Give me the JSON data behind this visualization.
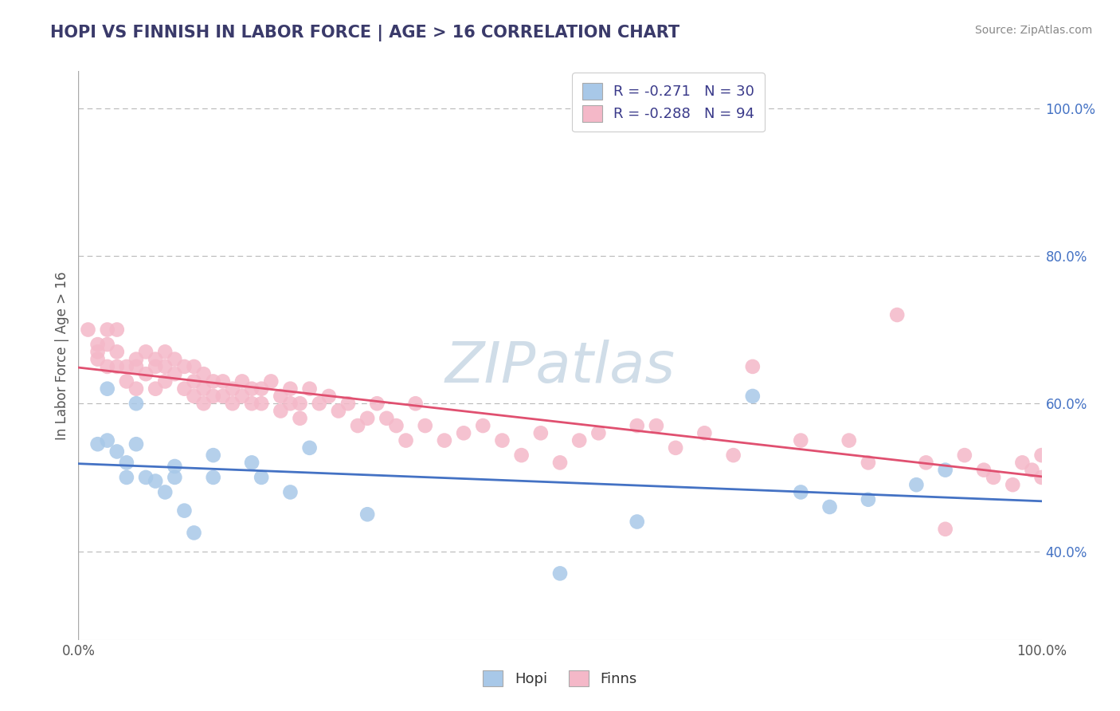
{
  "title": "HOPI VS FINNISH IN LABOR FORCE | AGE > 16 CORRELATION CHART",
  "source": "Source: ZipAtlas.com",
  "ylabel": "In Labor Force | Age > 16",
  "xlim": [
    0.0,
    1.0
  ],
  "ylim": [
    0.28,
    1.05
  ],
  "y_ticks_right": [
    0.4,
    0.6,
    0.8,
    1.0
  ],
  "y_tick_labels_right": [
    "40.0%",
    "60.0%",
    "80.0%",
    "100.0%"
  ],
  "hopi_R": -0.271,
  "hopi_N": 30,
  "finns_R": -0.288,
  "finns_N": 94,
  "hopi_color": "#a8c8e8",
  "finns_color": "#f4b8c8",
  "hopi_line_color": "#4472c4",
  "finns_line_color": "#e05070",
  "background_color": "#ffffff",
  "grid_color": "#b8b8b8",
  "hopi_x": [
    0.02,
    0.03,
    0.04,
    0.05,
    0.06,
    0.06,
    0.07,
    0.08,
    0.09,
    0.1,
    0.11,
    0.12,
    0.14,
    0.18,
    0.19,
    0.22,
    0.24,
    0.3,
    0.5,
    0.58,
    0.7,
    0.75,
    0.78,
    0.82,
    0.87,
    0.9,
    0.03,
    0.05,
    0.1,
    0.14
  ],
  "hopi_y": [
    0.545,
    0.55,
    0.535,
    0.52,
    0.545,
    0.6,
    0.5,
    0.495,
    0.48,
    0.515,
    0.455,
    0.425,
    0.53,
    0.52,
    0.5,
    0.48,
    0.54,
    0.45,
    0.37,
    0.44,
    0.61,
    0.48,
    0.46,
    0.47,
    0.49,
    0.51,
    0.62,
    0.5,
    0.5,
    0.5
  ],
  "finns_x": [
    0.01,
    0.02,
    0.02,
    0.02,
    0.03,
    0.03,
    0.03,
    0.04,
    0.04,
    0.04,
    0.05,
    0.05,
    0.06,
    0.06,
    0.06,
    0.07,
    0.07,
    0.08,
    0.08,
    0.08,
    0.09,
    0.09,
    0.09,
    0.1,
    0.1,
    0.11,
    0.11,
    0.12,
    0.12,
    0.12,
    0.13,
    0.13,
    0.13,
    0.14,
    0.14,
    0.15,
    0.15,
    0.16,
    0.16,
    0.17,
    0.17,
    0.18,
    0.18,
    0.19,
    0.19,
    0.2,
    0.21,
    0.21,
    0.22,
    0.22,
    0.23,
    0.23,
    0.24,
    0.25,
    0.26,
    0.27,
    0.28,
    0.29,
    0.3,
    0.31,
    0.32,
    0.33,
    0.34,
    0.35,
    0.36,
    0.38,
    0.4,
    0.42,
    0.44,
    0.46,
    0.48,
    0.5,
    0.52,
    0.54,
    0.58,
    0.6,
    0.62,
    0.65,
    0.68,
    0.7,
    0.75,
    0.8,
    0.82,
    0.85,
    0.88,
    0.9,
    0.92,
    0.94,
    0.95,
    0.97,
    0.98,
    0.99,
    1.0,
    1.0
  ],
  "finns_y": [
    0.7,
    0.68,
    0.67,
    0.66,
    0.7,
    0.68,
    0.65,
    0.7,
    0.67,
    0.65,
    0.65,
    0.63,
    0.66,
    0.65,
    0.62,
    0.67,
    0.64,
    0.66,
    0.65,
    0.62,
    0.67,
    0.65,
    0.63,
    0.66,
    0.64,
    0.65,
    0.62,
    0.65,
    0.63,
    0.61,
    0.64,
    0.62,
    0.6,
    0.63,
    0.61,
    0.63,
    0.61,
    0.62,
    0.6,
    0.63,
    0.61,
    0.62,
    0.6,
    0.62,
    0.6,
    0.63,
    0.61,
    0.59,
    0.62,
    0.6,
    0.6,
    0.58,
    0.62,
    0.6,
    0.61,
    0.59,
    0.6,
    0.57,
    0.58,
    0.6,
    0.58,
    0.57,
    0.55,
    0.6,
    0.57,
    0.55,
    0.56,
    0.57,
    0.55,
    0.53,
    0.56,
    0.52,
    0.55,
    0.56,
    0.57,
    0.57,
    0.54,
    0.56,
    0.53,
    0.65,
    0.55,
    0.55,
    0.52,
    0.72,
    0.52,
    0.43,
    0.53,
    0.51,
    0.5,
    0.49,
    0.52,
    0.51,
    0.5,
    0.53
  ],
  "watermark_text": "ZIPatlas",
  "watermark_color": "#d0dde8",
  "watermark_fontsize": 52
}
